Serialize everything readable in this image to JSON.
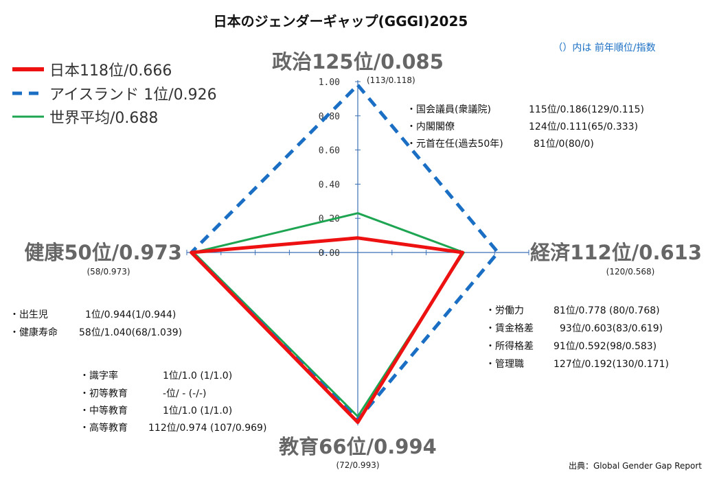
{
  "chart_data": {
    "type": "radar",
    "title": "日本のジェンダーギャップ(GGGI)2025",
    "note": "（）内は 前年順位/指数",
    "source": "出典：Global Gender Gap Report",
    "rlim": [
      0,
      1.0
    ],
    "r_ticks": [
      0.0,
      0.2,
      0.4,
      0.6,
      0.8,
      1.0
    ],
    "r_tick_labels": [
      "0.00",
      "0.20",
      "0.40",
      "0.60",
      "0.80",
      "1.00"
    ],
    "axes": [
      {
        "key": "politics",
        "label": "政治125位/0.085",
        "prev": "(113/0.118)",
        "items": [
          {
            "name": "・国会議員(衆議院)",
            "value": "115位/0.186(129/0.115)"
          },
          {
            "name": "・内閣閣僚",
            "value": "124位/0.111(65/0.333)"
          },
          {
            "name": "・元首在任(過去50年)",
            "value": "81位/0(80/0)"
          }
        ]
      },
      {
        "key": "economy",
        "label": "経済112位/0.613",
        "prev": "(120/0.568)",
        "items": [
          {
            "name": "・労働力",
            "value": "81位/0.778 (80/0.768)"
          },
          {
            "name": "・賃金格差",
            "value": "93位/0.603(83/0.619)"
          },
          {
            "name": "・所得格差",
            "value": "91位/0.592(98/0.583)"
          },
          {
            "name": "・管理職",
            "value": "127位/0.192(130/0.171)"
          }
        ]
      },
      {
        "key": "education",
        "label": "教育66位/0.994",
        "prev": "(72/0.993)",
        "items": [
          {
            "name": "・識字率",
            "value": "1位/1.0 (1/1.0)"
          },
          {
            "name": "・初等教育",
            "value": "-位/ - (-/-)"
          },
          {
            "name": "・中等教育",
            "value": "1位/1.0 (1/1.0)"
          },
          {
            "name": "・高等教育",
            "value": "112位/0.974 (107/0.969)"
          }
        ]
      },
      {
        "key": "health",
        "label": "健康50位/0.973",
        "prev": "(58/0.973)",
        "items": [
          {
            "name": "・出生児",
            "value": "1位/0.944(1/0.944)"
          },
          {
            "name": "・健康寿命",
            "value": "58位/1.040(68/1.039)"
          }
        ]
      }
    ],
    "series": [
      {
        "name": "日本118位/0.666",
        "color": "#ee1111",
        "style": "solid",
        "values": [
          0.085,
          0.613,
          0.994,
          0.973
        ]
      },
      {
        "name": "アイスランド 1位/0.926",
        "color": "#1a6fc4",
        "style": "dashed",
        "values": [
          0.98,
          0.82,
          0.98,
          0.973
        ]
      },
      {
        "name": "世界平均/0.688",
        "color": "#1ea552",
        "style": "solid",
        "values": [
          0.23,
          0.62,
          0.96,
          0.96
        ]
      }
    ],
    "legend": "top-left",
    "colors": {
      "axis": "#3b6fb5",
      "tick": "#3b6fb5",
      "note": "#1a6fc4"
    }
  }
}
